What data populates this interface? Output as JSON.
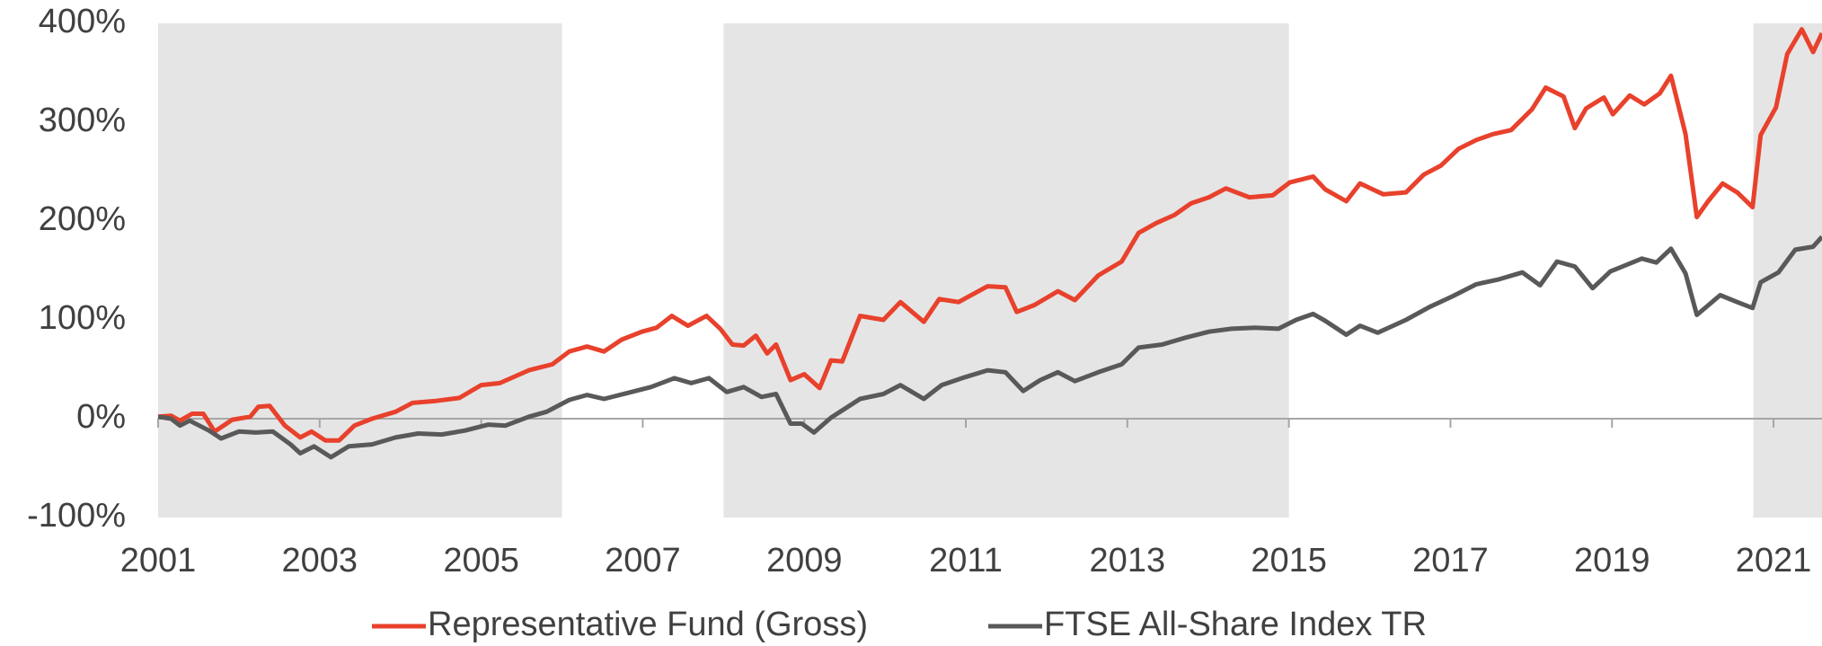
{
  "chart_data": {
    "type": "line",
    "xlim": [
      2001,
      2021.6
    ],
    "xticks": [
      2001,
      2003,
      2005,
      2007,
      2009,
      2011,
      2013,
      2015,
      2017,
      2019,
      2021
    ],
    "ylim": [
      -100,
      400
    ],
    "yticks": [
      {
        "value": -100,
        "label": "-100%"
      },
      {
        "value": 0,
        "label": "0%"
      },
      {
        "value": 100,
        "label": "100%"
      },
      {
        "value": 200,
        "label": "200%"
      },
      {
        "value": 300,
        "label": "300%"
      },
      {
        "value": 400,
        "label": "400%"
      }
    ],
    "shaded_periods": [
      [
        2001,
        2006
      ],
      [
        2008,
        2015
      ],
      [
        2020.75,
        2021.6
      ]
    ],
    "shade_color": "#e5e5e5",
    "legend": "bottom",
    "series": [
      {
        "name": "Representative Fund (Gross)",
        "color": "#e8412c",
        "x": [
          2001.0,
          2001.16,
          2001.27,
          2001.42,
          2001.56,
          2001.7,
          2001.92,
          2002.14,
          2002.24,
          2002.38,
          2002.57,
          2002.76,
          2002.9,
          2003.07,
          2003.24,
          2003.43,
          2003.65,
          2003.94,
          2004.15,
          2004.44,
          2004.73,
          2005.0,
          2005.23,
          2005.59,
          2005.88,
          2006.09,
          2006.31,
          2006.52,
          2006.74,
          2006.99,
          2007.17,
          2007.36,
          2007.56,
          2007.79,
          2007.96,
          2008.11,
          2008.25,
          2008.4,
          2008.54,
          2008.65,
          2008.83,
          2009.0,
          2009.19,
          2009.33,
          2009.47,
          2009.69,
          2009.98,
          2010.19,
          2010.48,
          2010.67,
          2010.91,
          2011.27,
          2011.49,
          2011.63,
          2011.85,
          2012.14,
          2012.35,
          2012.64,
          2012.93,
          2013.14,
          2013.36,
          2013.58,
          2013.79,
          2014.01,
          2014.22,
          2014.51,
          2014.8,
          2015.01,
          2015.3,
          2015.45,
          2015.71,
          2015.88,
          2016.17,
          2016.45,
          2016.67,
          2016.88,
          2017.1,
          2017.32,
          2017.53,
          2017.75,
          2018.01,
          2018.18,
          2018.4,
          2018.54,
          2018.68,
          2018.9,
          2019.01,
          2019.22,
          2019.4,
          2019.59,
          2019.73,
          2019.91,
          2020.05,
          2020.19,
          2020.37,
          2020.55,
          2020.74,
          2020.84,
          2021.03,
          2021.17,
          2021.35,
          2021.49,
          2021.6
        ],
        "values": [
          2,
          3,
          -2,
          5,
          5,
          -13,
          -1,
          2,
          12,
          13,
          -7,
          -19,
          -13,
          -22,
          -22,
          -7,
          0,
          7,
          16,
          18,
          21,
          34,
          36,
          49,
          55,
          68,
          73,
          68,
          80,
          88,
          92,
          104,
          94,
          104,
          91,
          75,
          74,
          84,
          66,
          75,
          39,
          45,
          31,
          59,
          58,
          104,
          100,
          118,
          98,
          121,
          118,
          134,
          133,
          108,
          115,
          129,
          120,
          145,
          159,
          188,
          198,
          206,
          218,
          224,
          233,
          224,
          226,
          239,
          245,
          232,
          220,
          238,
          227,
          229,
          247,
          256,
          273,
          282,
          288,
          292,
          313,
          335,
          326,
          294,
          314,
          325,
          308,
          327,
          318,
          329,
          347,
          288,
          204,
          220,
          238,
          229,
          214,
          287,
          315,
          369,
          394,
          371,
          390
        ]
      },
      {
        "name": "FTSE All-Share Index TR",
        "color": "#595959",
        "x": [
          2001.0,
          2001.16,
          2001.27,
          2001.39,
          2001.63,
          2001.78,
          2002.0,
          2002.21,
          2002.42,
          2002.64,
          2002.76,
          2002.93,
          2003.14,
          2003.36,
          2003.65,
          2003.94,
          2004.22,
          2004.51,
          2004.8,
          2005.09,
          2005.3,
          2005.59,
          2005.81,
          2006.09,
          2006.31,
          2006.52,
          2006.81,
          2007.1,
          2007.39,
          2007.6,
          2007.82,
          2008.04,
          2008.25,
          2008.47,
          2008.65,
          2008.83,
          2008.97,
          2009.12,
          2009.33,
          2009.69,
          2009.98,
          2010.19,
          2010.48,
          2010.7,
          2010.99,
          2011.27,
          2011.49,
          2011.71,
          2011.92,
          2012.14,
          2012.35,
          2012.64,
          2012.93,
          2013.14,
          2013.43,
          2013.72,
          2014.01,
          2014.29,
          2014.58,
          2014.87,
          2015.09,
          2015.3,
          2015.45,
          2015.71,
          2015.88,
          2016.1,
          2016.45,
          2016.74,
          2017.03,
          2017.32,
          2017.6,
          2017.89,
          2018.11,
          2018.32,
          2018.54,
          2018.76,
          2018.98,
          2019.19,
          2019.37,
          2019.55,
          2019.73,
          2019.91,
          2020.05,
          2020.34,
          2020.55,
          2020.74,
          2020.84,
          2021.06,
          2021.27,
          2021.49,
          2021.6
        ],
        "values": [
          2,
          0,
          -7,
          -2,
          -12,
          -20,
          -13,
          -14,
          -13,
          -26,
          -35,
          -28,
          -39,
          -28,
          -26,
          -19,
          -15,
          -16,
          -12,
          -6,
          -7,
          2,
          7,
          19,
          24,
          20,
          26,
          32,
          41,
          36,
          41,
          27,
          32,
          22,
          25,
          -5,
          -5,
          -14,
          1,
          20,
          25,
          34,
          20,
          34,
          42,
          49,
          47,
          28,
          39,
          47,
          38,
          47,
          55,
          72,
          75,
          82,
          88,
          91,
          92,
          91,
          100,
          106,
          99,
          85,
          94,
          87,
          100,
          113,
          124,
          136,
          141,
          148,
          135,
          159,
          154,
          132,
          149,
          156,
          162,
          158,
          172,
          147,
          105,
          125,
          118,
          112,
          138,
          148,
          171,
          174,
          184
        ]
      }
    ]
  }
}
